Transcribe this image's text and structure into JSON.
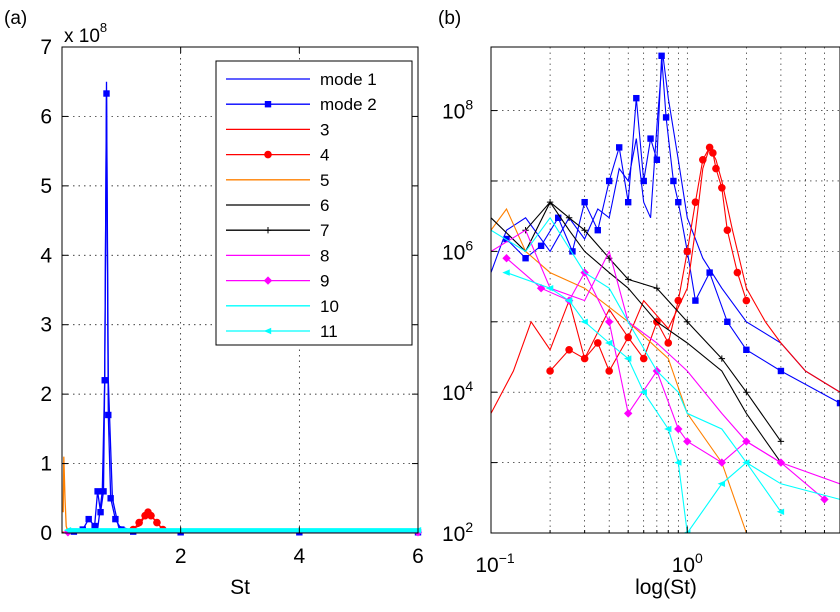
{
  "chart_data": [
    {
      "panel_label": "(a)",
      "type": "line",
      "xlabel": "St",
      "ylabel": "",
      "y_multiplier": "x 10",
      "y_multiplier_exponent": "8",
      "xlim": [
        0,
        6
      ],
      "ylim": [
        0,
        7
      ],
      "x_ticks": [
        2,
        4,
        6
      ],
      "x_tick_labels": [
        "2",
        "4",
        "6"
      ],
      "y_ticks": [
        0,
        1,
        2,
        3,
        4,
        5,
        6,
        7
      ],
      "y_tick_labels": [
        "0",
        "1",
        "2",
        "3",
        "4",
        "5",
        "6",
        "7"
      ],
      "grid": true,
      "legend": {
        "placement": "top-right",
        "entries": [
          "mode 1",
          "mode 2",
          "3",
          "4",
          "5",
          "6",
          "7",
          "8",
          "9",
          "10",
          "11"
        ]
      },
      "series": [
        {
          "label": "mode 1",
          "color": "#0000ff",
          "marker": "none",
          "x": [
            0.6,
            0.68,
            0.72,
            0.75,
            0.78,
            0.85,
            0.95,
            1.2,
            2.0,
            6.0
          ],
          "y": [
            0.05,
            0.6,
            2.2,
            6.5,
            2.2,
            0.5,
            0.1,
            0.03,
            0.01,
            0.01
          ]
        },
        {
          "label": "mode 2",
          "color": "#0000ff",
          "marker": "square",
          "x": [
            0.2,
            0.35,
            0.45,
            0.55,
            0.6,
            0.65,
            0.7,
            0.72,
            0.75,
            0.78,
            0.82,
            0.9,
            1.0,
            1.2,
            2.0,
            4.0,
            6.0
          ],
          "y": [
            0.02,
            0.05,
            0.2,
            0.1,
            0.6,
            0.3,
            0.6,
            2.2,
            6.33,
            1.7,
            0.5,
            0.2,
            0.05,
            0.02,
            0.01,
            0.01,
            0.01
          ]
        },
        {
          "label": "3",
          "color": "#ff0000",
          "marker": "none",
          "x": [
            0.0,
            1.0,
            1.3,
            1.4,
            1.45,
            1.55,
            1.7,
            2.0,
            6.0
          ],
          "y": [
            0.01,
            0.02,
            0.1,
            0.25,
            0.3,
            0.2,
            0.05,
            0.02,
            0.01
          ]
        },
        {
          "label": "4",
          "color": "#ff0000",
          "marker": "circle",
          "x": [
            1.2,
            1.3,
            1.4,
            1.45,
            1.5,
            1.6,
            1.7
          ],
          "y": [
            0.05,
            0.15,
            0.25,
            0.3,
            0.25,
            0.15,
            0.05
          ]
        },
        {
          "label": "5",
          "color": "#ff8000",
          "marker": "none",
          "x": [
            0.02,
            0.03,
            0.05,
            0.07,
            0.1,
            6.0
          ],
          "y": [
            0.3,
            1.1,
            0.5,
            0.1,
            0.02,
            0.01
          ]
        },
        {
          "label": "6",
          "color": "#000000",
          "marker": "none",
          "x": [
            0.1,
            6.0
          ],
          "y": [
            0.01,
            0.01
          ]
        },
        {
          "label": "7",
          "color": "#000000",
          "marker": "plus",
          "x": [
            0.1,
            6.0
          ],
          "y": [
            0.01,
            0.01
          ]
        },
        {
          "label": "8",
          "color": "#ff00ff",
          "marker": "none",
          "x": [
            0.1,
            6.0
          ],
          "y": [
            0.01,
            0.01
          ]
        },
        {
          "label": "9",
          "color": "#ff00ff",
          "marker": "diamond",
          "x": [
            0.1,
            6.0
          ],
          "y": [
            0.01,
            0.01
          ]
        },
        {
          "label": "10",
          "color": "#00ffff",
          "marker": "none",
          "x": [
            0.1,
            6.0
          ],
          "y": [
            0.04,
            0.04
          ]
        },
        {
          "label": "11",
          "color": "#00ffff",
          "marker": "left-triangle",
          "x": [
            0.1,
            6.0
          ],
          "y": [
            0.04,
            0.04
          ]
        }
      ]
    },
    {
      "panel_label": "(b)",
      "type": "line",
      "xlabel": "log(St)",
      "ylabel": "",
      "x_scale": "log",
      "y_scale": "log",
      "xlim": [
        0.1,
        6.0
      ],
      "ylim": [
        100,
        800000000
      ],
      "x_ticks": [
        0.1,
        1
      ],
      "x_tick_label_base": "10",
      "x_tick_label_exponents": [
        "−1",
        "0"
      ],
      "y_ticks": [
        100,
        10000,
        1000000,
        100000000
      ],
      "y_tick_label_base": "10",
      "y_tick_label_exponents": [
        "2",
        "4",
        "6",
        "8"
      ],
      "grid": true,
      "series": [
        {
          "label": "mode 1",
          "color": "#0000ff",
          "marker": "none",
          "x": [
            0.1,
            0.12,
            0.15,
            0.2,
            0.25,
            0.3,
            0.35,
            0.4,
            0.45,
            0.5,
            0.55,
            0.6,
            0.65,
            0.7,
            0.75,
            0.8,
            0.9,
            1.0,
            1.2,
            1.5,
            2.0,
            3.0,
            4.0,
            6.0
          ],
          "y": [
            500000,
            2000000,
            3000000,
            1000000,
            3000000,
            1500000,
            4000000,
            3000000,
            15000000,
            10000000,
            40000000,
            5000000,
            3000000,
            60000000,
            650000000,
            150000000,
            20000000,
            3000000,
            800000,
            300000,
            100000,
            50000,
            20000,
            10000
          ]
        },
        {
          "label": "mode 2",
          "color": "#0000ff",
          "marker": "square",
          "x": [
            0.12,
            0.15,
            0.18,
            0.22,
            0.26,
            0.3,
            0.35,
            0.4,
            0.45,
            0.5,
            0.55,
            0.6,
            0.65,
            0.7,
            0.74,
            0.78,
            0.85,
            0.9,
            1.0,
            1.1,
            1.3,
            1.6,
            2.0,
            3.0,
            6.0
          ],
          "y": [
            1500000,
            800000,
            1200000,
            3000000,
            1000000,
            5000000,
            2000000,
            10000000,
            30000000,
            5000000,
            150000000,
            10000000,
            40000000,
            20000000,
            600000000,
            80000000,
            10000000,
            5000000,
            1000000,
            200000,
            500000,
            100000,
            40000,
            20000,
            7000
          ]
        },
        {
          "label": "3",
          "color": "#ff0000",
          "marker": "none",
          "x": [
            0.1,
            0.13,
            0.16,
            0.2,
            0.25,
            0.3,
            0.4,
            0.5,
            0.6,
            0.8,
            1.0,
            1.1,
            1.2,
            1.3,
            1.4,
            1.5,
            1.7,
            2.0,
            2.5,
            3.0,
            4.0,
            6.0
          ],
          "y": [
            5000,
            20000,
            100000,
            40000,
            200000,
            30000,
            150000,
            60000,
            200000,
            80000,
            300000,
            2000000,
            15000000,
            30000000,
            20000000,
            10000000,
            2000000,
            300000,
            100000,
            50000,
            20000,
            10000
          ]
        },
        {
          "label": "4",
          "color": "#ff0000",
          "marker": "circle",
          "x": [
            0.2,
            0.25,
            0.3,
            0.35,
            0.4,
            0.5,
            0.6,
            0.7,
            0.8,
            0.9,
            1.0,
            1.1,
            1.2,
            1.3,
            1.35,
            1.4,
            1.5,
            1.6,
            1.8,
            2.0
          ],
          "y": [
            20000,
            40000,
            30000,
            50000,
            20000,
            60000,
            30000,
            100000,
            50000,
            200000,
            1000000,
            5000000,
            20000000,
            30000000,
            25000000,
            15000000,
            8000000,
            2000000,
            500000,
            200000
          ]
        },
        {
          "label": "5",
          "color": "#ff8000",
          "marker": "none",
          "x": [
            0.1,
            0.12,
            0.15,
            0.2,
            0.3,
            0.5,
            0.8,
            1.0,
            1.5,
            2.0
          ],
          "y": [
            2000000,
            4000000,
            1000000,
            500000,
            300000,
            100000,
            30000,
            5000,
            1000,
            100
          ]
        },
        {
          "label": "6",
          "color": "#000000",
          "marker": "none",
          "x": [
            0.1,
            0.15,
            0.2,
            0.25,
            0.3,
            0.4,
            0.5,
            0.7,
            1.0,
            1.5,
            2.0,
            3.0
          ],
          "y": [
            3000000,
            1000000,
            5000000,
            2000000,
            1000000,
            500000,
            300000,
            100000,
            50000,
            20000,
            5000,
            1000
          ]
        },
        {
          "label": "7",
          "color": "#000000",
          "marker": "plus",
          "x": [
            0.15,
            0.2,
            0.25,
            0.3,
            0.4,
            0.5,
            0.7,
            1.0,
            1.5,
            2.0,
            3.0
          ],
          "y": [
            2000000,
            5000000,
            3000000,
            2000000,
            800000,
            400000,
            300000,
            100000,
            30000,
            10000,
            2000
          ]
        },
        {
          "label": "8",
          "color": "#ff00ff",
          "marker": "none",
          "x": [
            0.1,
            0.15,
            0.2,
            0.3,
            0.4,
            0.5,
            0.7,
            1.0,
            1.5,
            2.0,
            3.0,
            6.0
          ],
          "y": [
            1000000,
            2000000,
            300000,
            200000,
            1000000,
            100000,
            50000,
            20000,
            5000,
            2000,
            1000,
            500
          ]
        },
        {
          "label": "9",
          "color": "#ff00ff",
          "marker": "diamond",
          "x": [
            0.12,
            0.18,
            0.25,
            0.3,
            0.4,
            0.5,
            0.7,
            0.9,
            1.0,
            1.5,
            2.0,
            3.0,
            5.0
          ],
          "y": [
            800000,
            300000,
            200000,
            500000,
            100000,
            5000,
            20000,
            3000,
            2000,
            1000,
            2000,
            1000,
            300
          ]
        },
        {
          "label": "10",
          "color": "#00ffff",
          "marker": "none",
          "x": [
            0.1,
            0.15,
            0.2,
            0.3,
            0.4,
            0.5,
            0.7,
            0.9,
            1.0,
            1.5,
            2.0,
            3.0,
            6.0
          ],
          "y": [
            2000000,
            1000000,
            3000000,
            500000,
            300000,
            100000,
            20000,
            10000,
            5000,
            3000,
            1000,
            500,
            300
          ]
        },
        {
          "label": "11",
          "color": "#00ffff",
          "marker": "left-triangle",
          "x": [
            0.12,
            0.2,
            0.25,
            0.3,
            0.4,
            0.5,
            0.6,
            0.8,
            0.9,
            1.0,
            1.5,
            2.0,
            3.0
          ],
          "y": [
            500000,
            300000,
            200000,
            100000,
            50000,
            30000,
            10000,
            3000,
            1000,
            100,
            500,
            1000,
            200
          ]
        }
      ]
    }
  ]
}
